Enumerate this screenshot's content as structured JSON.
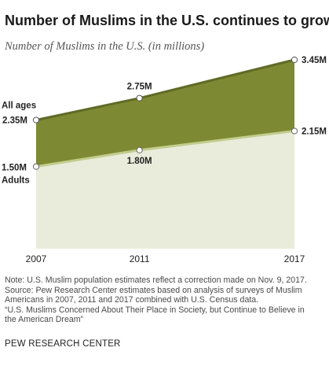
{
  "title": "Number of Muslims in the U.S. continues to grow",
  "subtitle": "Number of Muslims in the U.S. (in millions)",
  "colors": {
    "all_ages_band": "#7e8a33",
    "all_ages_line": "#5f6b26",
    "adults_area": "#e9ecdb",
    "adults_line": "#c2cc8e",
    "text": "#222222"
  },
  "chart_data": {
    "type": "area",
    "x": [
      2007,
      2011,
      2017
    ],
    "x_tick_labels": [
      "2007",
      "2011",
      "2017"
    ],
    "series": [
      {
        "name": "All ages",
        "values": [
          2.35,
          2.75,
          3.45
        ],
        "labels": [
          "2.35M",
          "2.75M",
          "3.45M"
        ]
      },
      {
        "name": "Adults",
        "values": [
          1.5,
          1.8,
          2.15
        ],
        "labels": [
          "1.50M",
          "1.80M",
          "2.15M"
        ]
      }
    ],
    "ylim": [
      0,
      3.45
    ],
    "grid": false,
    "legend": "inline labels on left"
  },
  "notes": [
    "Note: U.S. Muslim population estimates reflect a correction made on Nov. 9, 2017.",
    "Source: Pew Research Center estimates based on analysis of surveys of Muslim",
    "Americans in 2007, 2011 and 2017 combined with U.S. Census data.",
    "“U.S. Muslims Concerned About Their Place in Society, but Continue to Believe in",
    "the American Dream”"
  ],
  "org": "PEW RESEARCH CENTER"
}
